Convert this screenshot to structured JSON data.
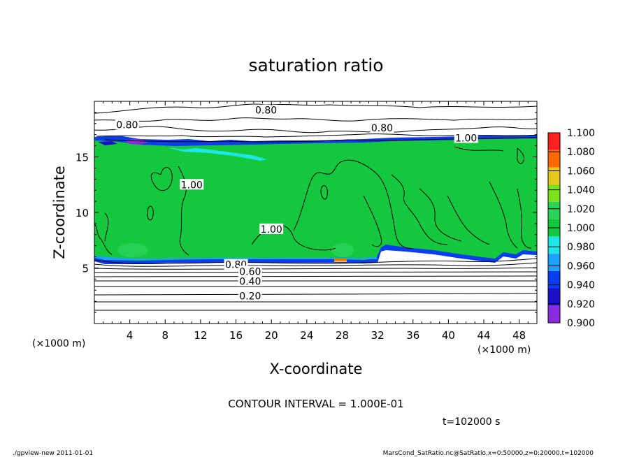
{
  "chart_data": {
    "type": "heatmap",
    "title": "saturation ratio",
    "xlabel": "X-coordinate",
    "ylabel": "Z-coordinate",
    "x_unit_left": "(×1000 m)",
    "x_unit_right": "(×1000 m)",
    "xlim": [
      0,
      50
    ],
    "ylim": [
      0,
      20
    ],
    "x_ticks": [
      4,
      8,
      12,
      16,
      20,
      24,
      28,
      32,
      36,
      40,
      44,
      48
    ],
    "x_tick_labels": [
      "4",
      "8",
      "12",
      "16",
      "20",
      "24",
      "28",
      "32",
      "36",
      "40",
      "44",
      "48"
    ],
    "y_ticks": [
      5,
      10,
      15
    ],
    "y_tick_labels": [
      "5",
      "10",
      "15"
    ],
    "colorbar": {
      "min": 0.9,
      "max": 1.1,
      "step": 0.02,
      "labels": [
        "1.100",
        "1.080",
        "1.060",
        "1.040",
        "1.020",
        "1.000",
        "0.980",
        "0.960",
        "0.940",
        "0.920",
        "0.900"
      ],
      "colors": [
        "#8b2be0",
        "#1a10c8",
        "#0a3cf0",
        "#1ea0ff",
        "#1ee6e6",
        "#13c83c",
        "#2cd25a",
        "#7be21e",
        "#e6c81e",
        "#ff6a00",
        "#ff2020"
      ]
    },
    "contour_labels": [
      {
        "text": "0.80",
        "x": 19.4,
        "z": 19.2
      },
      {
        "text": "0.80",
        "x": 3.7,
        "z": 17.9
      },
      {
        "text": "0.80",
        "x": 32.5,
        "z": 17.6
      },
      {
        "text": "1.00",
        "x": 42.0,
        "z": 16.7
      },
      {
        "text": "1.00",
        "x": 11.0,
        "z": 12.5
      },
      {
        "text": "1.00",
        "x": 20.0,
        "z": 8.5
      },
      {
        "text": "0.80",
        "x": 16.0,
        "z": 5.3
      },
      {
        "text": "0.60",
        "x": 17.6,
        "z": 4.7
      },
      {
        "text": "0.40",
        "x": 17.6,
        "z": 3.8
      },
      {
        "text": "0.20",
        "x": 17.6,
        "z": 2.5
      }
    ],
    "contour_interval_text": "CONTOUR INTERVAL = 1.000E-01",
    "time_text": "t=102000 s",
    "footer_left": "./gpview-new   2011-01-01",
    "footer_right": "MarsCond_SatRatio.nc@SatRatio,x=0:50000,z=0:20000,t=102000",
    "colors": {
      "field": "#13c83c",
      "band": "#0a3cf0"
    }
  }
}
